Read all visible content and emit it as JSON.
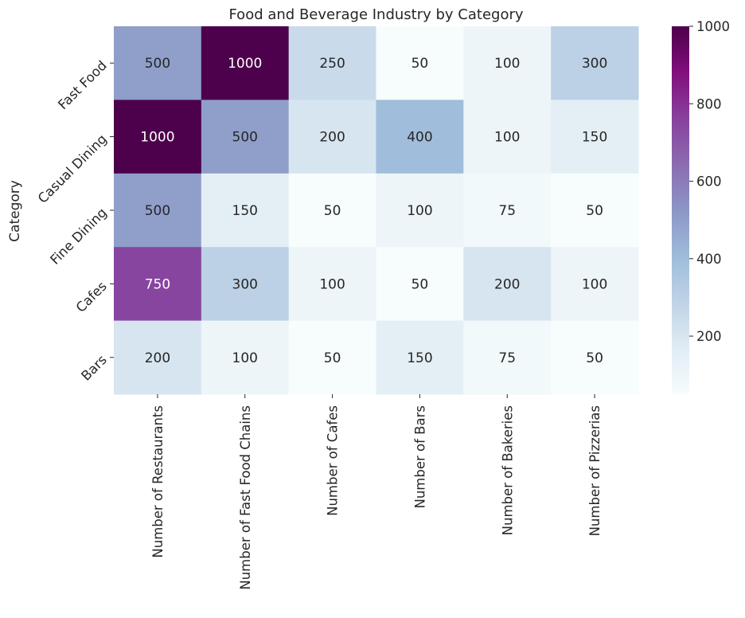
{
  "chart_data": {
    "type": "heatmap",
    "title": "Food and Beverage Industry by Category",
    "ylabel": "Category",
    "xlabel": "",
    "columns": [
      "Number of Restaurants",
      "Number of Fast Food Chains",
      "Number of Cafes",
      "Number of Bars",
      "Number of Bakeries",
      "Number of Pizzerias"
    ],
    "rows": [
      "Fast Food",
      "Casual Dining",
      "Fine Dining",
      "Cafes",
      "Bars"
    ],
    "values": [
      [
        500,
        1000,
        250,
        50,
        100,
        300
      ],
      [
        1000,
        500,
        200,
        400,
        100,
        150
      ],
      [
        500,
        150,
        50,
        100,
        75,
        50
      ],
      [
        750,
        300,
        100,
        50,
        200,
        100
      ],
      [
        200,
        100,
        50,
        150,
        75,
        50
      ]
    ],
    "colorbar": {
      "min": 50,
      "max": 1000,
      "ticks": [
        200,
        400,
        600,
        800,
        1000
      ],
      "colormap": "BuPu",
      "colors": [
        "#f7fcfd",
        "#e0ecf4",
        "#bfd3e6",
        "#9ebcda",
        "#8c96c6",
        "#8c6bb1",
        "#88419d",
        "#810f7c",
        "#4d004b"
      ]
    }
  }
}
